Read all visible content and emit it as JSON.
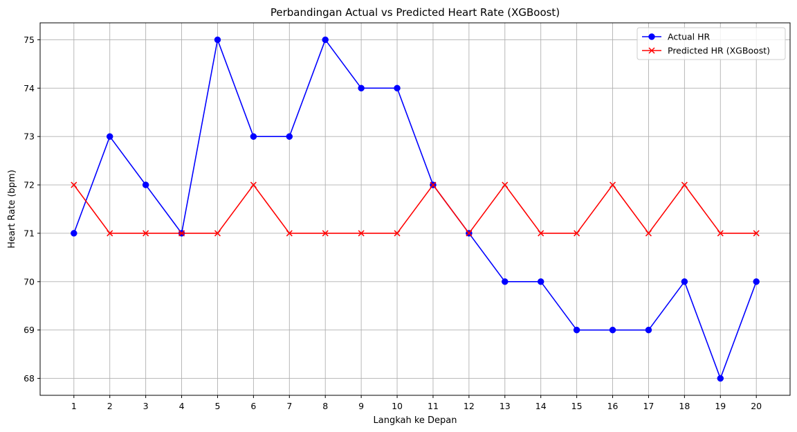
{
  "chart_data": {
    "type": "line",
    "title": "Perbandingan Actual vs Predicted Heart Rate (XGBoost)",
    "xlabel": "Langkah ke Depan",
    "ylabel": "Heart Rate (bpm)",
    "x": [
      1,
      2,
      3,
      4,
      5,
      6,
      7,
      8,
      9,
      10,
      11,
      12,
      13,
      14,
      15,
      16,
      17,
      18,
      19,
      20
    ],
    "x_tick_labels": [
      "1",
      "2",
      "3",
      "4",
      "5",
      "6",
      "7",
      "8",
      "9",
      "10",
      "11",
      "12",
      "13",
      "14",
      "15",
      "16",
      "17",
      "18",
      "19",
      "20"
    ],
    "y_ticks": [
      68,
      69,
      70,
      71,
      72,
      73,
      74,
      75
    ],
    "y_tick_labels": [
      "68",
      "69",
      "70",
      "71",
      "72",
      "73",
      "74",
      "75"
    ],
    "xlim": [
      0.06,
      20.94
    ],
    "ylim": [
      67.65,
      75.35
    ],
    "grid": true,
    "legend_position": "top-right",
    "series": [
      {
        "name": "Actual HR",
        "color": "#0000ff",
        "marker": "circle",
        "values": [
          71,
          73,
          72,
          71,
          75,
          73,
          73,
          75,
          74,
          74,
          72,
          71,
          70,
          70,
          69,
          69,
          69,
          70,
          68,
          70
        ]
      },
      {
        "name": "Predicted HR (XGBoost)",
        "color": "#ff0000",
        "marker": "x",
        "values": [
          72,
          71,
          71,
          71,
          71,
          72,
          71,
          71,
          71,
          71,
          72,
          71,
          72,
          71,
          71,
          72,
          71,
          72,
          71,
          71
        ]
      }
    ]
  }
}
